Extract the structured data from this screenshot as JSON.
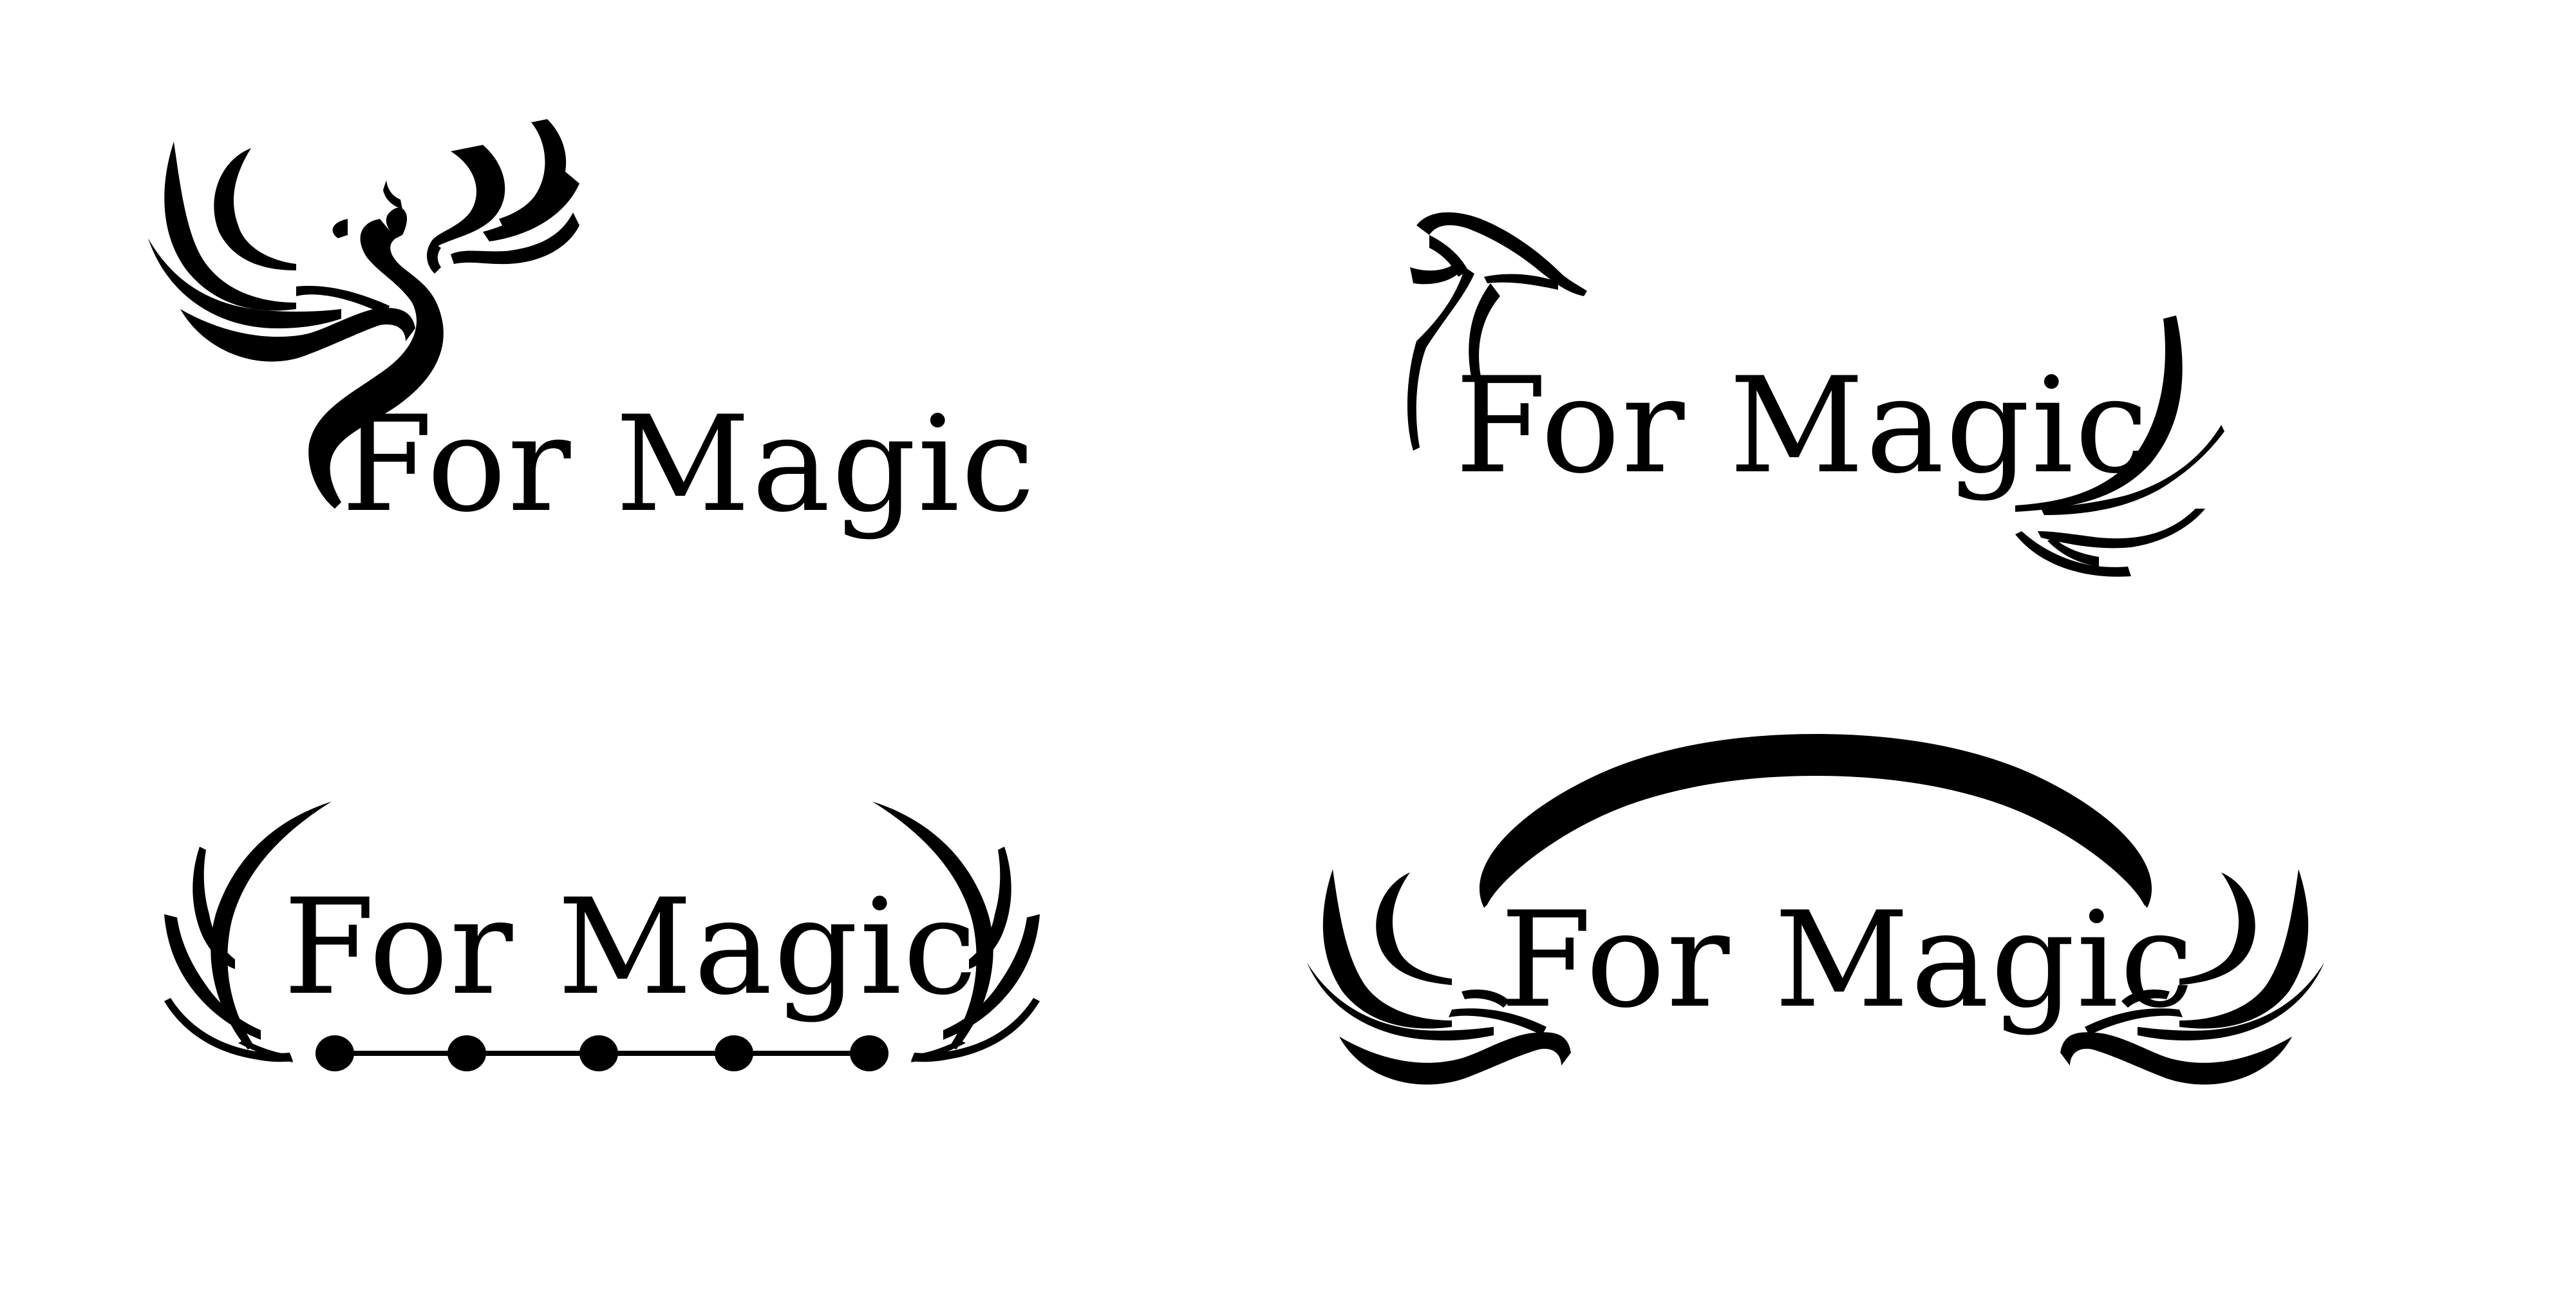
{
  "brand_color": "#000000",
  "background_color": "#ffffff",
  "logos": [
    {
      "variant": "phoenix-above",
      "wordmark": "For Magic"
    },
    {
      "variant": "hook-and-wing",
      "wordmark": "For Magic"
    },
    {
      "variant": "laurel-with-dotted-line",
      "wordmark": "For Magic"
    },
    {
      "variant": "arc-with-wings",
      "wordmark": "For Magic"
    }
  ]
}
